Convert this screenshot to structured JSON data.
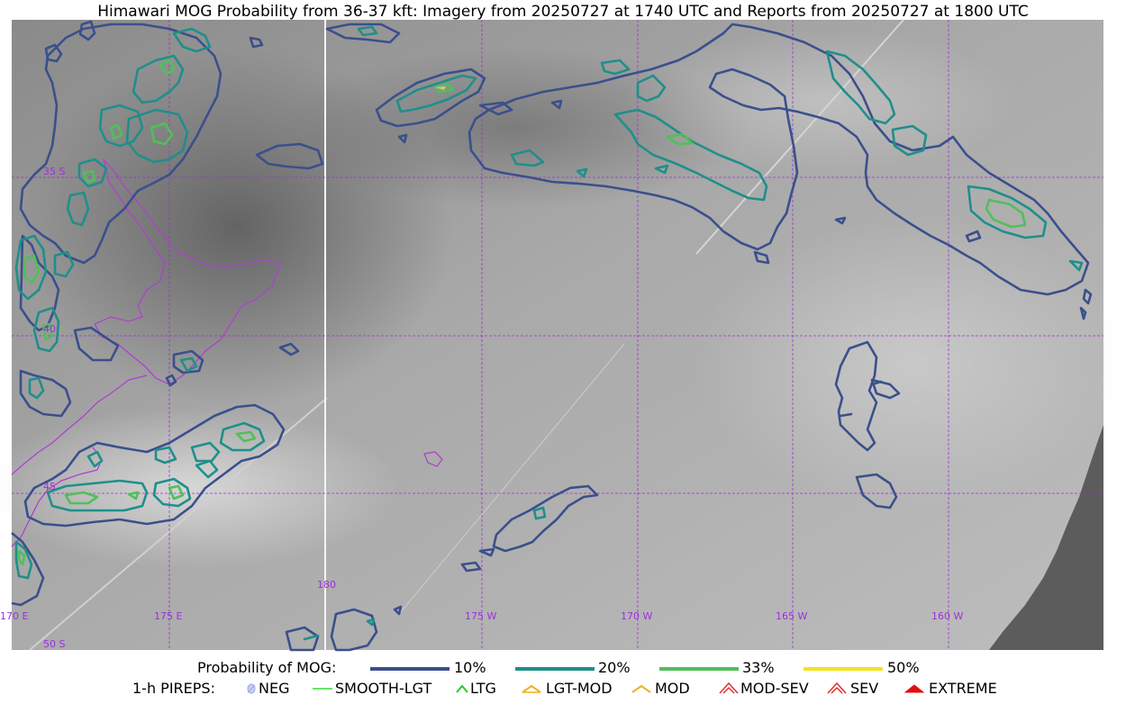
{
  "title": "Himawari MOG Probability from 36-37 kft: Imagery from 20250727 at 1740 UTC and Reports from 20250727 at 1800 UTC",
  "map": {
    "lat_labels": [
      "35 S",
      "40",
      "45",
      "50 S"
    ],
    "lon_labels": [
      "170 E",
      "175 E",
      "180",
      "175 W",
      "170 W",
      "165 W",
      "160 W"
    ],
    "colors": {
      "grid": "#9b30d9",
      "coast": "#b040d0",
      "p10": "#3b4f8c",
      "p20": "#1f8f8a",
      "p33": "#4fc05a",
      "p50": "#f5e31c"
    }
  },
  "legend": {
    "probability_title": "Probability of MOG:",
    "probability_items": [
      {
        "label": "10%",
        "color": "#3b4f8c"
      },
      {
        "label": "20%",
        "color": "#1f8f8a"
      },
      {
        "label": "33%",
        "color": "#4fc05a"
      },
      {
        "label": "50%",
        "color": "#f5e31c"
      }
    ],
    "pireps_title": "1-h PIREPS:",
    "pireps_items": [
      {
        "label": "NEG",
        "icon": "neg-icon",
        "color": "#b0b8f0"
      },
      {
        "label": "SMOOTH-LGT",
        "icon": "smooth-lgt-icon",
        "color": "#33dd33"
      },
      {
        "label": "LTG",
        "icon": "ltg-icon",
        "color": "#22cc22"
      },
      {
        "label": "LGT-MOD",
        "icon": "lgt-mod-icon",
        "color": "#f0b020"
      },
      {
        "label": "MOD",
        "icon": "mod-icon",
        "color": "#f0b020"
      },
      {
        "label": "MOD-SEV",
        "icon": "mod-sev-icon",
        "color": "#e03030"
      },
      {
        "label": "SEV",
        "icon": "sev-icon",
        "color": "#e03030"
      },
      {
        "label": "EXTREME",
        "icon": "extreme-icon",
        "color": "#e01010"
      }
    ]
  }
}
